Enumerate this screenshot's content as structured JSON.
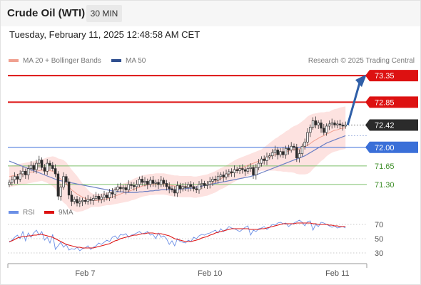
{
  "header": {
    "instrument": "Crude Oil (WTI)",
    "timeframe": "30 MIN",
    "timestamp": "Tuesday, February 11, 2025 12:48:58 AM CET"
  },
  "legend": {
    "ma20_label": "MA 20 + Bollinger Bands",
    "ma50_label": "MA 50",
    "credit": "Research © 2025 Trading Central",
    "rsi_label": "RSI",
    "ma9_label": "9MA"
  },
  "colors": {
    "resistance": "#dd1111",
    "pivot": "#3a6fd8",
    "support": "#7cbf6a",
    "last": "#2b2b2b",
    "bollinger_fill": "#fde2e0",
    "ma20": "#f0a090",
    "ma50": "#6b7fc4",
    "rsi": "#6b8fe6",
    "rsi_ma": "#dd1111"
  },
  "chart_data": [
    {
      "type": "candlestick",
      "name": "price",
      "ylim": [
        70.95,
        73.5
      ],
      "levels": [
        {
          "value": 73.35,
          "label": "73.35",
          "kind": "resistance"
        },
        {
          "value": 72.85,
          "label": "72.85",
          "kind": "resistance"
        },
        {
          "value": 72.42,
          "label": "72.42",
          "kind": "last"
        },
        {
          "value": 72.0,
          "label": "72.00",
          "kind": "pivot"
        },
        {
          "value": 71.65,
          "label": "71.65",
          "kind": "support"
        },
        {
          "value": 71.3,
          "label": "71.30",
          "kind": "support"
        }
      ],
      "x_ticks": [
        {
          "index": 28,
          "label": "Feb 7"
        },
        {
          "index": 74,
          "label": "Feb 10"
        },
        {
          "index": 121,
          "label": "Feb 11"
        }
      ],
      "projection_target": 73.35,
      "close": [
        71.34,
        71.39,
        71.45,
        71.4,
        71.5,
        71.55,
        71.48,
        71.6,
        71.66,
        71.58,
        71.7,
        71.76,
        71.62,
        71.55,
        71.7,
        71.66,
        71.6,
        71.5,
        71.08,
        71.25,
        71.45,
        71.35,
        71.1,
        70.98,
        71.02,
        70.95,
        70.98,
        71.0,
        70.98,
        71.02,
        71.0,
        71.04,
        71.08,
        71.02,
        71.06,
        71.1,
        71.05,
        71.15,
        71.12,
        71.2,
        71.25,
        71.22,
        71.24,
        71.2,
        71.3,
        71.28,
        71.26,
        71.3,
        71.4,
        71.34,
        71.36,
        71.3,
        71.38,
        71.32,
        71.34,
        71.3,
        71.38,
        71.32,
        71.26,
        71.22,
        71.2,
        71.14,
        71.28,
        71.22,
        71.26,
        71.24,
        71.3,
        71.26,
        71.22,
        71.2,
        71.3,
        71.32,
        71.28,
        71.3,
        71.36,
        71.4,
        71.38,
        71.45,
        71.48,
        71.44,
        71.5,
        71.54,
        71.52,
        71.58,
        71.56,
        71.6,
        71.58,
        71.55,
        71.6,
        71.62,
        71.48,
        71.62,
        71.7,
        71.78,
        71.75,
        71.82,
        71.84,
        71.9,
        71.95,
        71.86,
        71.92,
        71.86,
        71.98,
        71.95,
        72.02,
        72.0,
        71.8,
        71.88,
        72.02,
        72.1,
        72.28,
        72.38,
        72.5,
        72.42,
        72.46,
        72.36,
        72.28,
        72.4,
        72.44,
        72.46,
        72.42,
        72.44,
        72.42,
        72.4,
        72.42
      ],
      "ma20": [
        71.45,
        71.46,
        71.47,
        71.48,
        71.49,
        71.5,
        71.51,
        71.52,
        71.53,
        71.54,
        71.55,
        71.56,
        71.57,
        71.57,
        71.57,
        71.56,
        71.55,
        71.52,
        71.45,
        71.4,
        71.36,
        71.32,
        71.25,
        71.2,
        71.16,
        71.12,
        71.09,
        71.06,
        71.04,
        71.02,
        71.01,
        71.0,
        71.0,
        71.0,
        71.01,
        71.02,
        71.03,
        71.04,
        71.06,
        71.08,
        71.1,
        71.12,
        71.14,
        71.15,
        71.17,
        71.19,
        71.21,
        71.23,
        71.25,
        71.27,
        71.28,
        71.29,
        71.3,
        71.3,
        71.31,
        71.31,
        71.31,
        71.31,
        71.3,
        71.29,
        71.28,
        71.27,
        71.27,
        71.26,
        71.26,
        71.26,
        71.26,
        71.26,
        71.25,
        71.25,
        71.26,
        71.27,
        71.28,
        71.29,
        71.31,
        71.33,
        71.35,
        71.38,
        71.41,
        71.43,
        71.46,
        71.49,
        71.52,
        71.55,
        71.58,
        71.6,
        71.62,
        71.64,
        71.66,
        71.68,
        71.7,
        71.72,
        71.74,
        71.76,
        71.78,
        71.8,
        71.82,
        71.84,
        71.86,
        71.87,
        71.89,
        71.9,
        71.92,
        71.93,
        71.95,
        71.96,
        71.96,
        71.97,
        71.99,
        72.01,
        72.04,
        72.07,
        72.11,
        72.14,
        72.17,
        72.2,
        72.22,
        72.25,
        72.27,
        72.3,
        72.32,
        72.33,
        72.35,
        72.36,
        72.37
      ],
      "bollinger_band_half_width": [
        0.2,
        0.2,
        0.2,
        0.2,
        0.2,
        0.2,
        0.2,
        0.2,
        0.2,
        0.2,
        0.2,
        0.2,
        0.2,
        0.22,
        0.24,
        0.26,
        0.28,
        0.3,
        0.34,
        0.38,
        0.4,
        0.4,
        0.4,
        0.38,
        0.36,
        0.34,
        0.3,
        0.26,
        0.22,
        0.18,
        0.14,
        0.12,
        0.12,
        0.12,
        0.12,
        0.12,
        0.12,
        0.13,
        0.14,
        0.15,
        0.16,
        0.17,
        0.18,
        0.18,
        0.19,
        0.19,
        0.2,
        0.2,
        0.2,
        0.2,
        0.2,
        0.2,
        0.2,
        0.2,
        0.2,
        0.2,
        0.2,
        0.2,
        0.2,
        0.2,
        0.2,
        0.2,
        0.2,
        0.2,
        0.2,
        0.2,
        0.2,
        0.2,
        0.2,
        0.2,
        0.2,
        0.2,
        0.2,
        0.2,
        0.2,
        0.2,
        0.2,
        0.2,
        0.2,
        0.2,
        0.2,
        0.2,
        0.2,
        0.2,
        0.2,
        0.2,
        0.2,
        0.2,
        0.2,
        0.2,
        0.2,
        0.2,
        0.2,
        0.2,
        0.22,
        0.24,
        0.26,
        0.28,
        0.3,
        0.32,
        0.34,
        0.36,
        0.38,
        0.4,
        0.42,
        0.44,
        0.46,
        0.48,
        0.5,
        0.52,
        0.54,
        0.54,
        0.52,
        0.5,
        0.48,
        0.46,
        0.44,
        0.42,
        0.4,
        0.4,
        0.4,
        0.4,
        0.4,
        0.4,
        0.4
      ],
      "ma50": [
        71.74,
        71.72,
        71.7,
        71.68,
        71.66,
        71.64,
        71.62,
        71.6,
        71.58,
        71.56,
        71.54,
        71.52,
        71.5,
        71.48,
        71.46,
        71.44,
        71.42,
        71.4,
        71.38,
        71.37,
        71.36,
        71.35,
        71.34,
        71.33,
        71.32,
        71.31,
        71.3,
        71.29,
        71.28,
        71.27,
        71.26,
        71.25,
        71.24,
        71.23,
        71.22,
        71.21,
        71.2,
        71.19,
        71.18,
        71.17,
        71.17,
        71.16,
        71.16,
        71.15,
        71.15,
        71.15,
        71.15,
        71.15,
        71.16,
        71.16,
        71.17,
        71.17,
        71.18,
        71.18,
        71.19,
        71.19,
        71.2,
        71.2,
        71.2,
        71.2,
        71.2,
        71.2,
        71.21,
        71.21,
        71.22,
        71.22,
        71.23,
        71.23,
        71.24,
        71.25,
        71.26,
        71.27,
        71.28,
        71.29,
        71.3,
        71.31,
        71.32,
        71.33,
        71.34,
        71.35,
        71.36,
        71.37,
        71.38,
        71.39,
        71.4,
        71.41,
        71.42,
        71.43,
        71.44,
        71.45,
        71.47,
        71.48,
        71.5,
        71.52,
        71.54,
        71.56,
        71.58,
        71.6,
        71.62,
        71.64,
        71.66,
        71.68,
        71.7,
        71.72,
        71.74,
        71.76,
        71.78,
        71.8,
        71.82,
        71.84,
        71.87,
        71.9,
        71.93,
        71.96,
        71.99,
        72.02,
        72.05,
        72.08,
        72.1,
        72.12,
        72.14,
        72.16,
        72.18,
        72.2,
        72.22
      ]
    },
    {
      "type": "line",
      "name": "RSI",
      "ylim": [
        20,
        80
      ],
      "y_ticks": [
        "70",
        "50",
        "30"
      ],
      "series": [
        {
          "name": "RSI",
          "values": [
            45,
            48,
            52,
            55,
            50,
            60,
            47,
            58,
            52,
            58,
            62,
            55,
            60,
            48,
            52,
            44,
            56,
            35,
            40,
            45,
            38,
            42,
            34,
            36,
            35,
            38,
            33,
            36,
            37,
            40,
            35,
            38,
            40,
            44,
            42,
            45,
            48,
            46,
            52,
            54,
            50,
            56,
            55,
            57,
            52,
            55,
            56,
            58,
            60,
            57,
            58,
            60,
            55,
            56,
            50,
            58,
            52,
            54,
            50,
            42,
            47,
            40,
            50,
            46,
            45,
            44,
            48,
            46,
            52,
            50,
            54,
            56,
            55,
            57,
            58,
            60,
            62,
            58,
            64,
            60,
            63,
            67,
            65,
            64,
            62,
            60,
            63,
            66,
            68,
            55,
            62,
            60,
            64,
            65,
            67,
            63,
            66,
            70,
            69,
            72,
            73,
            71,
            72,
            67,
            70,
            72,
            74,
            76,
            73,
            68,
            74,
            75,
            62,
            70,
            67,
            73,
            72,
            70,
            68,
            66,
            68,
            65,
            66,
            67,
            65
          ]
        },
        {
          "name": "9MA",
          "values": [
            46,
            47,
            49,
            51,
            52,
            53,
            53,
            54,
            54,
            55,
            55,
            56,
            56,
            55,
            54,
            53,
            52,
            50,
            48,
            46,
            44,
            42,
            41,
            40,
            39,
            38,
            38,
            37,
            37,
            37,
            37,
            37,
            38,
            39,
            40,
            41,
            42,
            43,
            45,
            47,
            48,
            50,
            51,
            52,
            53,
            54,
            55,
            55,
            56,
            57,
            57,
            58,
            58,
            58,
            57,
            57,
            57,
            56,
            55,
            54,
            52,
            50,
            49,
            48,
            47,
            46,
            46,
            46,
            47,
            48,
            49,
            51,
            52,
            53,
            55,
            56,
            58,
            59,
            60,
            61,
            62,
            63,
            64,
            64,
            64,
            64,
            64,
            64,
            64,
            63,
            63,
            63,
            63,
            64,
            64,
            65,
            66,
            67,
            68,
            69,
            70,
            71,
            71,
            71,
            71,
            71,
            72,
            72,
            72,
            72,
            72,
            72,
            71,
            71,
            70,
            70,
            70,
            70,
            69,
            69,
            68,
            68,
            67,
            67,
            67
          ]
        }
      ]
    }
  ]
}
